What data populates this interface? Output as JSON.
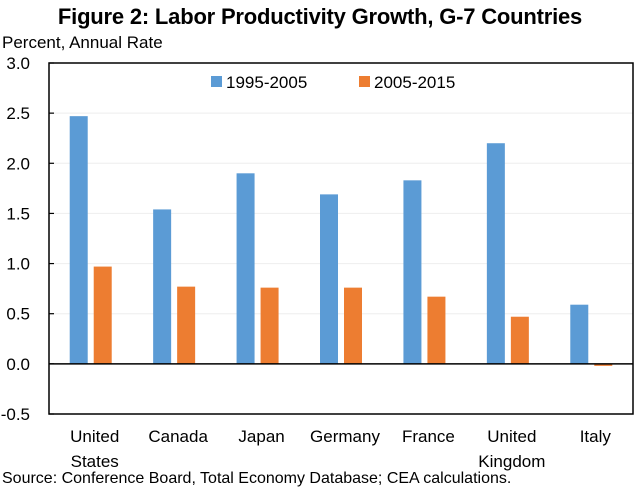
{
  "chart_data": {
    "type": "bar",
    "title": "Figure 2: Labor Productivity Growth, G-7 Countries",
    "ylabel": "Percent, Annual Rate",
    "xlabel": "",
    "source": "Source: Conference Board, Total Economy Database; CEA calculations.",
    "categories": [
      [
        "United",
        "States"
      ],
      [
        "Canada"
      ],
      [
        "Japan"
      ],
      [
        "Germany"
      ],
      [
        "France"
      ],
      [
        "United",
        "Kingdom"
      ],
      [
        "Italy"
      ]
    ],
    "series": [
      {
        "name": "1995-2005",
        "color": "#5b9bd5",
        "values": [
          2.47,
          1.54,
          1.9,
          1.69,
          1.83,
          2.2,
          0.59
        ]
      },
      {
        "name": "2005-2015",
        "color": "#ed7d31",
        "values": [
          0.97,
          0.77,
          0.76,
          0.76,
          0.67,
          0.47,
          -0.02
        ]
      }
    ],
    "ylim": [
      -0.5,
      3.0
    ],
    "yticks": [
      3.0,
      2.5,
      2.0,
      1.5,
      1.0,
      0.5,
      0.0,
      -0.5
    ],
    "ytick_labels": [
      "3.0",
      "2.5",
      "2.0",
      "1.5",
      "1.0",
      "0.5",
      "0.0",
      "-0.5"
    ],
    "grid": true,
    "legend_position": "top-center"
  }
}
